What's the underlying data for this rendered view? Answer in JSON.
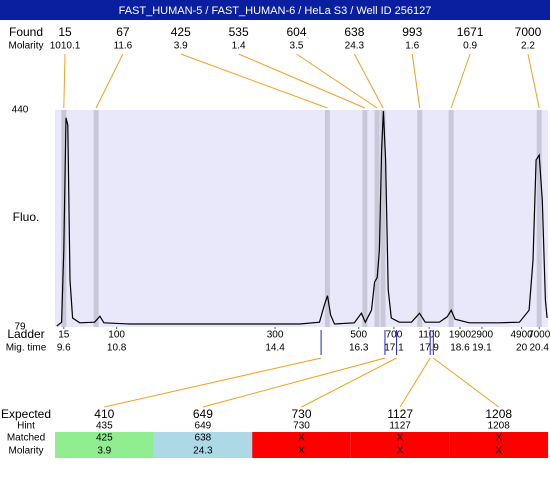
{
  "chart_data": {
    "type": "electropherogram",
    "title": "FAST_HUMAN-5 / FAST_HUMAN-6 / HeLa S3 / Well ID 256127",
    "y_label": "Fluo.",
    "ylim": [
      79,
      440
    ],
    "yticks": [
      79,
      440
    ],
    "xlim": [
      9.4,
      20.6
    ],
    "band_color": "#c8c8d8",
    "plot_color": "#e8e8fa",
    "trace": {
      "color": "#000000",
      "x": [
        9.44,
        9.55,
        9.6,
        9.65,
        9.69,
        9.74,
        9.8,
        9.96,
        10.3,
        10.42,
        10.51,
        11.1,
        12.69,
        14.96,
        15.41,
        15.52,
        15.59,
        15.66,
        15.75,
        16.2,
        16.36,
        16.45,
        16.59,
        16.66,
        16.72,
        16.77,
        16.82,
        16.86,
        16.91,
        16.97,
        17.04,
        17.22,
        17.5,
        17.68,
        17.81,
        18.13,
        18.31,
        18.4,
        18.49,
        18.81,
        19.49,
        19.95,
        20.17,
        20.26,
        20.33,
        20.4,
        20.47,
        20.54,
        20.58
      ],
      "values": [
        80.7,
        87,
        207,
        427,
        415,
        157,
        94,
        86,
        87,
        97,
        86,
        84,
        84,
        84,
        87,
        116,
        131,
        99,
        84,
        86,
        102,
        87,
        107,
        154,
        161,
        207,
        373,
        438,
        357,
        141,
        94,
        87,
        87,
        102,
        87,
        87,
        96,
        107,
        92,
        86,
        86,
        87,
        107,
        190,
        357,
        365,
        290,
        124,
        94
      ]
    },
    "found": {
      "label": "Found",
      "molarity_label": "Molarity",
      "color": "#f0a020",
      "sizes": [
        15,
        67,
        425,
        535,
        604,
        638,
        993,
        1671,
        7000
      ],
      "molarity": [
        1010.1,
        11.6,
        3.9,
        1.4,
        3.5,
        24.3,
        1.6,
        0.9,
        2.2
      ]
    },
    "ladder": {
      "label": "Ladder",
      "time_label": "Mig. time",
      "color": "#208020",
      "sizes": [
        15,
        100,
        300,
        500,
        700,
        1100,
        1900,
        2900,
        4900,
        7000
      ],
      "times": [
        9.6,
        10.8,
        14.4,
        16.3,
        17.1,
        17.9,
        18.6,
        19.1,
        20,
        20.4
      ]
    },
    "expected": {
      "label": "Expected",
      "hint_label": "Hint",
      "matched_label": "Matched",
      "molarity_label": "Molarity",
      "marker_color": "#2020d0",
      "line_color": "#f0a020",
      "sizes": [
        410,
        649,
        730,
        1127,
        1208
      ],
      "hint": [
        435,
        649,
        730,
        1127,
        1208
      ],
      "matched": [
        425,
        638,
        "X",
        "X",
        "X"
      ],
      "molarity": [
        3.9,
        24.3,
        "X",
        "X",
        "X"
      ],
      "colors": [
        "#90ee90",
        "#add8e6",
        "#ff0000",
        "#ff0000",
        "#ff0000"
      ]
    }
  }
}
